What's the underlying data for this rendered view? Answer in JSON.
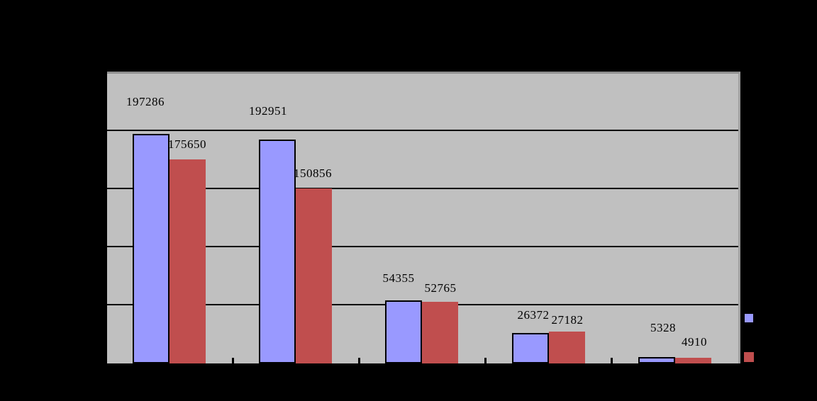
{
  "chart_data": {
    "type": "bar",
    "title": "",
    "xlabel": "",
    "ylabel": "",
    "categories": [
      "",
      "",
      "",
      "",
      ""
    ],
    "series": [
      {
        "name": "",
        "color": "#9999FF",
        "values": [
          197286,
          192951,
          54355,
          26372,
          5328
        ]
      },
      {
        "name": "",
        "color": "#C04E4E",
        "values": [
          175650,
          150856,
          52765,
          27182,
          4910
        ]
      }
    ],
    "ylim": [
      0,
      250000
    ],
    "y_major_unit": 50000,
    "grid": true,
    "data_labels": true,
    "legend_position": "right"
  },
  "colors": {
    "canvas_background": "#000000",
    "plot_fill": "#C0C0C0",
    "plot_border_top": "#8F8F8F",
    "plot_border_right": "#A0A0A0",
    "gridline": "#000000",
    "axis": "#000000",
    "series1_fill": "#9999FF",
    "series1_border": "#000000",
    "series2_fill": "#C04E4E",
    "data_label_color": "#000000"
  }
}
